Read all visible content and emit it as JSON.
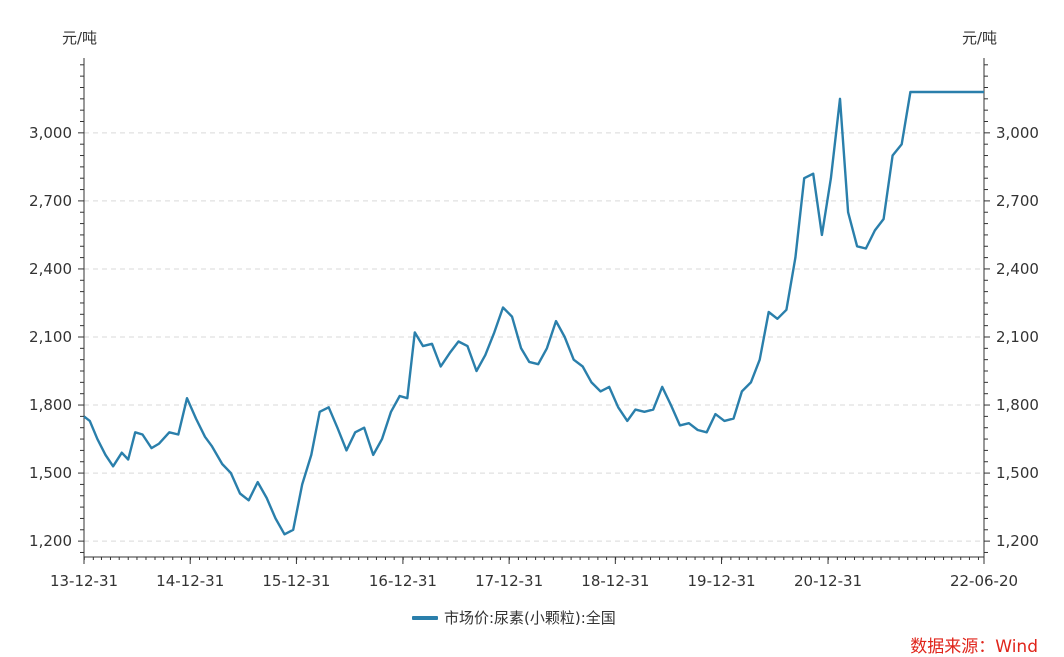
{
  "chart_data": {
    "type": "line",
    "y_unit_left": "元/吨",
    "y_unit_right": "元/吨",
    "ylim": [
      1130,
      3330
    ],
    "yticks": [
      1200,
      1500,
      1800,
      2100,
      2400,
      2700,
      3000
    ],
    "ytick_labels": [
      "1,200",
      "1,500",
      "1,800",
      "2,100",
      "2,400",
      "2,700",
      "3,000"
    ],
    "xlim": [
      "2013-12-31",
      "2022-06-20"
    ],
    "xticks": [
      "2013-12-31",
      "2014-12-31",
      "2015-12-31",
      "2016-12-31",
      "2017-12-31",
      "2018-12-31",
      "2019-12-31",
      "2020-12-31",
      "2022-06-20"
    ],
    "xtick_labels": [
      "13-12-31",
      "14-12-31",
      "15-12-31",
      "16-12-31",
      "17-12-31",
      "18-12-31",
      "19-12-31",
      "20-12-31",
      "22-06-20"
    ],
    "grid": true,
    "legend_position": "bottom",
    "series": [
      {
        "name": "市场价:尿素(小颗粒):全国",
        "color": "#2a7fab",
        "x": [
          "2013-12-31",
          "2014-01-20",
          "2014-02-15",
          "2014-03-15",
          "2014-04-10",
          "2014-05-10",
          "2014-06-01",
          "2014-06-25",
          "2014-07-20",
          "2014-08-20",
          "2014-09-15",
          "2014-10-20",
          "2014-11-20",
          "2014-12-20",
          "2015-01-20",
          "2015-02-20",
          "2015-03-15",
          "2015-04-20",
          "2015-05-20",
          "2015-06-20",
          "2015-07-20",
          "2015-08-20",
          "2015-09-20",
          "2015-10-20",
          "2015-11-20",
          "2015-12-20",
          "2016-01-20",
          "2016-02-20",
          "2016-03-20",
          "2016-04-20",
          "2016-05-20",
          "2016-06-20",
          "2016-07-20",
          "2016-08-20",
          "2016-09-20",
          "2016-10-20",
          "2016-11-20",
          "2016-12-20",
          "2017-01-15",
          "2017-02-10",
          "2017-03-10",
          "2017-04-10",
          "2017-05-10",
          "2017-06-10",
          "2017-07-10",
          "2017-08-10",
          "2017-09-10",
          "2017-10-10",
          "2017-11-10",
          "2017-12-10",
          "2018-01-10",
          "2018-02-10",
          "2018-03-10",
          "2018-04-10",
          "2018-05-10",
          "2018-06-10",
          "2018-07-10",
          "2018-08-10",
          "2018-09-10",
          "2018-10-10",
          "2018-11-10",
          "2018-12-10",
          "2019-01-10",
          "2019-02-10",
          "2019-03-10",
          "2019-04-10",
          "2019-05-10",
          "2019-06-10",
          "2019-07-10",
          "2019-08-10",
          "2019-09-10",
          "2019-10-10",
          "2019-11-10",
          "2019-12-10",
          "2020-01-10",
          "2020-02-10",
          "2020-03-10",
          "2020-04-10",
          "2020-05-10",
          "2020-06-10",
          "2020-07-10",
          "2020-08-10",
          "2020-09-10",
          "2020-10-10",
          "2020-11-10",
          "2020-12-10",
          "2021-01-10",
          "2021-02-10",
          "2021-03-10",
          "2021-04-10",
          "2021-05-10",
          "2021-06-10",
          "2021-07-10",
          "2021-08-10",
          "2021-09-10",
          "2021-10-10",
          "2021-11-10",
          "2021-12-10",
          "2022-01-10",
          "2022-02-10",
          "2022-03-10",
          "2022-04-10",
          "2022-05-10",
          "2022-06-20"
        ],
        "values": [
          1750,
          1730,
          1650,
          1580,
          1530,
          1590,
          1560,
          1680,
          1670,
          1610,
          1630,
          1680,
          1670,
          1830,
          1740,
          1660,
          1620,
          1540,
          1500,
          1410,
          1380,
          1460,
          1390,
          1300,
          1230,
          1250,
          1450,
          1580,
          1770,
          1790,
          1700,
          1600,
          1680,
          1700,
          1580,
          1650,
          1770,
          1840,
          1830,
          2120,
          2060,
          2070,
          1970,
          2030,
          2080,
          2060,
          1950,
          2020,
          2120,
          2230,
          2190,
          2050,
          1990,
          1980,
          2050,
          2170,
          2100,
          2000,
          1970,
          1900,
          1860,
          1880,
          1790,
          1730,
          1780,
          1770,
          1780,
          1880,
          1800,
          1710,
          1720,
          1690,
          1680,
          1760,
          1730,
          1740,
          1860,
          1900,
          2000,
          2210,
          2180,
          2220,
          2450,
          2800,
          2820,
          2550,
          2800,
          3150,
          2650,
          2500,
          2490,
          2570,
          2620,
          2900,
          2950,
          3180,
          3180,
          3180,
          3180,
          3180,
          3180,
          3180,
          3180,
          3180
        ]
      }
    ]
  },
  "legend_label": "市场价:尿素(小颗粒):全国",
  "source": "数据来源：Wind",
  "source_color": "#e0251b"
}
